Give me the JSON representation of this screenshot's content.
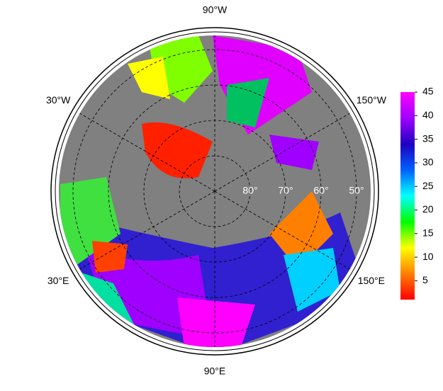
{
  "chart_data": {
    "type": "polar-map",
    "latlim": [
      90,
      46
    ],
    "longitude_labels": [
      {
        "value": -90,
        "label": "90°W"
      },
      {
        "value": -30,
        "label": "30°W"
      },
      {
        "value": -150,
        "label": "150°W"
      },
      {
        "value": 30,
        "label": "30°E"
      },
      {
        "value": 150,
        "label": "150°E"
      },
      {
        "value": 90,
        "label": "90°E"
      }
    ],
    "latitude_labels": [
      {
        "value": 80,
        "label": "80°"
      },
      {
        "value": 70,
        "label": "70°"
      },
      {
        "value": 60,
        "label": "60°"
      },
      {
        "value": 50,
        "label": "50°"
      }
    ],
    "colorbar": {
      "lim": [
        1,
        45
      ],
      "ticks": [
        5,
        10,
        15,
        20,
        25,
        30,
        35,
        40,
        45
      ],
      "colors": [
        "#ff0000",
        "#ff8000",
        "#ffff00",
        "#00ff00",
        "#00ffff",
        "#0060ff",
        "#2000c0",
        "#a000ff",
        "#ff00ff"
      ]
    }
  }
}
